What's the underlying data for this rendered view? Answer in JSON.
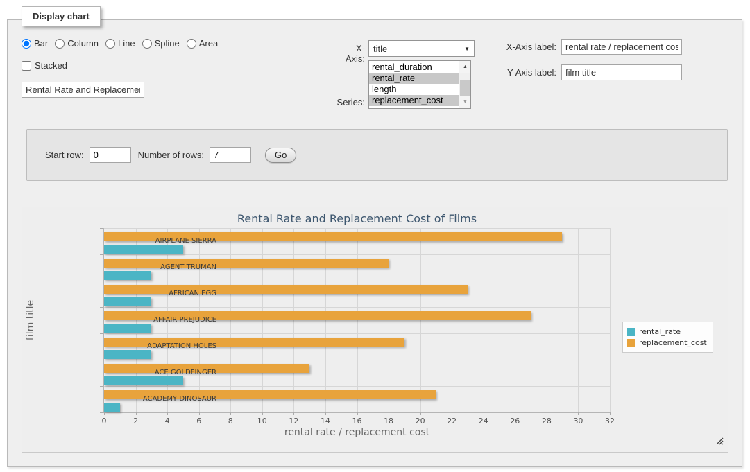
{
  "form": {
    "legend": "Display chart",
    "chart_types": [
      {
        "label": "Bar",
        "selected": true
      },
      {
        "label": "Column",
        "selected": false
      },
      {
        "label": "Line",
        "selected": false
      },
      {
        "label": "Spline",
        "selected": false
      },
      {
        "label": "Area",
        "selected": false
      }
    ],
    "stacked_label": "Stacked",
    "title_input_value": "Rental Rate and Replacement Cost of Films",
    "x_axis": {
      "label": "X-Axis:",
      "selected": "title"
    },
    "series": {
      "label": "Series:",
      "options": [
        {
          "label": "rental_duration",
          "selected": false
        },
        {
          "label": "rental_rate",
          "selected": true
        },
        {
          "label": "length",
          "selected": false
        },
        {
          "label": "replacement_cost",
          "selected": true
        }
      ]
    },
    "x_axis_label": {
      "label": "X-Axis label:",
      "value": "rental rate / replacement cost"
    },
    "y_axis_label": {
      "label": "Y-Axis label:",
      "value": "film title"
    }
  },
  "row_controls": {
    "start_row_label": "Start row:",
    "start_row_value": "0",
    "num_rows_label": "Number of rows:",
    "num_rows_value": "7",
    "go_label": "Go"
  },
  "chart_data": {
    "type": "bar",
    "orientation": "horizontal",
    "title": "Rental Rate and Replacement Cost of Films",
    "categories": [
      "AIRPLANE SIERRA",
      "AGENT TRUMAN",
      "AFRICAN EGG",
      "AFFAIR PREJUDICE",
      "ADAPTATION HOLES",
      "ACE GOLDFINGER",
      "ACADEMY DINOSAUR"
    ],
    "series": [
      {
        "name": "rental_rate",
        "color": "#4bb5c5",
        "values": [
          4.99,
          2.99,
          2.99,
          2.99,
          2.99,
          4.99,
          0.99
        ]
      },
      {
        "name": "replacement_cost",
        "color": "#e8a33c",
        "values": [
          28.99,
          17.99,
          22.99,
          26.99,
          18.99,
          12.99,
          20.99
        ]
      }
    ],
    "xlabel": "rental rate / replacement cost",
    "ylabel": "film title",
    "xlim": [
      0,
      32
    ],
    "x_tick_step": 2,
    "x_ticks": [
      0,
      2,
      4,
      6,
      8,
      10,
      12,
      14,
      16,
      18,
      20,
      22,
      24,
      26,
      28,
      30,
      32
    ],
    "grid": true,
    "legend_position": "right",
    "group_bar_order": [
      "replacement_cost",
      "rental_rate"
    ]
  }
}
